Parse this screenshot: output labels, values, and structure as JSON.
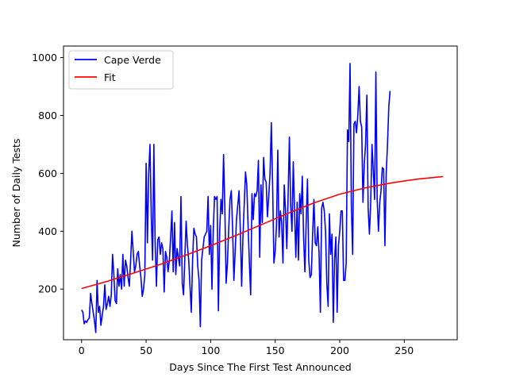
{
  "chart_data": {
    "type": "line",
    "xlabel": "Days Since The First Test Announced",
    "ylabel": "Number of Daily Tests",
    "xlim": [
      -14,
      291
    ],
    "ylim": [
      25,
      1040
    ],
    "x_ticks": [
      0,
      50,
      100,
      150,
      200,
      250
    ],
    "y_ticks": [
      200,
      400,
      600,
      800,
      1000
    ],
    "grid": false,
    "legend": "top-left",
    "series": [
      {
        "name": "Cape Verde",
        "color": "#0000ff",
        "points": [
          [
            0,
            128
          ],
          [
            1,
            120
          ],
          [
            2,
            80
          ],
          [
            3,
            90
          ],
          [
            4,
            85
          ],
          [
            5,
            95
          ],
          [
            6,
            100
          ],
          [
            7,
            185
          ],
          [
            8,
            150
          ],
          [
            9,
            120
          ],
          [
            10,
            90
          ],
          [
            11,
            50
          ],
          [
            12,
            230
          ],
          [
            13,
            120
          ],
          [
            14,
            140
          ],
          [
            15,
            75
          ],
          [
            16,
            110
          ],
          [
            17,
            140
          ],
          [
            18,
            215
          ],
          [
            19,
            130
          ],
          [
            20,
            150
          ],
          [
            21,
            175
          ],
          [
            22,
            140
          ],
          [
            23,
            180
          ],
          [
            24,
            320
          ],
          [
            25,
            250
          ],
          [
            26,
            160
          ],
          [
            27,
            150
          ],
          [
            28,
            270
          ],
          [
            29,
            210
          ],
          [
            30,
            250
          ],
          [
            31,
            200
          ],
          [
            32,
            320
          ],
          [
            33,
            210
          ],
          [
            34,
            300
          ],
          [
            35,
            280
          ],
          [
            36,
            240
          ],
          [
            37,
            210
          ],
          [
            38,
            300
          ],
          [
            39,
            400
          ],
          [
            40,
            330
          ],
          [
            41,
            260
          ],
          [
            42,
            280
          ],
          [
            43,
            320
          ],
          [
            44,
            330
          ],
          [
            45,
            280
          ],
          [
            46,
            240
          ],
          [
            47,
            175
          ],
          [
            48,
            200
          ],
          [
            49,
            250
          ],
          [
            50,
            635
          ],
          [
            51,
            360
          ],
          [
            52,
            600
          ],
          [
            53,
            700
          ],
          [
            54,
            450
          ],
          [
            55,
            300
          ],
          [
            56,
            700
          ],
          [
            57,
            360
          ],
          [
            58,
            210
          ],
          [
            59,
            370
          ],
          [
            60,
            380
          ],
          [
            61,
            320
          ],
          [
            62,
            360
          ],
          [
            63,
            340
          ],
          [
            64,
            190
          ],
          [
            65,
            330
          ],
          [
            66,
            310
          ],
          [
            67,
            260
          ],
          [
            68,
            300
          ],
          [
            69,
            380
          ],
          [
            70,
            470
          ],
          [
            71,
            260
          ],
          [
            72,
            430
          ],
          [
            73,
            250
          ],
          [
            74,
            340
          ],
          [
            75,
            310
          ],
          [
            76,
            280
          ],
          [
            77,
            520
          ],
          [
            78,
            220
          ],
          [
            79,
            180
          ],
          [
            80,
            310
          ],
          [
            81,
            435
          ],
          [
            82,
            350
          ],
          [
            83,
            300
          ],
          [
            84,
            210
          ],
          [
            85,
            120
          ],
          [
            86,
            300
          ],
          [
            87,
            410
          ],
          [
            88,
            390
          ],
          [
            89,
            380
          ],
          [
            90,
            280
          ],
          [
            91,
            230
          ],
          [
            92,
            70
          ],
          [
            93,
            300
          ],
          [
            94,
            340
          ],
          [
            95,
            380
          ],
          [
            96,
            390
          ],
          [
            97,
            400
          ],
          [
            98,
            520
          ],
          [
            99,
            320
          ],
          [
            100,
            420
          ],
          [
            101,
            200
          ],
          [
            102,
            400
          ],
          [
            103,
            520
          ],
          [
            104,
            510
          ],
          [
            105,
            520
          ],
          [
            106,
            125
          ],
          [
            107,
            400
          ],
          [
            108,
            510
          ],
          [
            109,
            460
          ],
          [
            110,
            665
          ],
          [
            111,
            480
          ],
          [
            112,
            220
          ],
          [
            113,
            290
          ],
          [
            114,
            410
          ],
          [
            115,
            510
          ],
          [
            116,
            540
          ],
          [
            117,
            410
          ],
          [
            118,
            230
          ],
          [
            119,
            330
          ],
          [
            120,
            440
          ],
          [
            121,
            490
          ],
          [
            122,
            540
          ],
          [
            123,
            400
          ],
          [
            124,
            210
          ],
          [
            125,
            380
          ],
          [
            126,
            490
          ],
          [
            127,
            605
          ],
          [
            128,
            560
          ],
          [
            129,
            420
          ],
          [
            130,
            290
          ],
          [
            131,
            180
          ],
          [
            132,
            530
          ],
          [
            133,
            440
          ],
          [
            134,
            530
          ],
          [
            135,
            520
          ],
          [
            136,
            540
          ],
          [
            137,
            645
          ],
          [
            138,
            310
          ],
          [
            139,
            560
          ],
          [
            140,
            430
          ],
          [
            141,
            655
          ],
          [
            142,
            580
          ],
          [
            143,
            570
          ],
          [
            144,
            450
          ],
          [
            145,
            520
          ],
          [
            146,
            600
          ],
          [
            147,
            775
          ],
          [
            148,
            560
          ],
          [
            149,
            290
          ],
          [
            150,
            330
          ],
          [
            151,
            420
          ],
          [
            152,
            680
          ],
          [
            153,
            380
          ],
          [
            154,
            470
          ],
          [
            155,
            430
          ],
          [
            156,
            290
          ],
          [
            157,
            560
          ],
          [
            158,
            470
          ],
          [
            159,
            340
          ],
          [
            160,
            520
          ],
          [
            161,
            725
          ],
          [
            162,
            490
          ],
          [
            163,
            400
          ],
          [
            164,
            640
          ],
          [
            165,
            470
          ],
          [
            166,
            310
          ],
          [
            167,
            500
          ],
          [
            168,
            300
          ],
          [
            169,
            530
          ],
          [
            170,
            460
          ],
          [
            171,
            590
          ],
          [
            172,
            380
          ],
          [
            173,
            260
          ],
          [
            174,
            430
          ],
          [
            175,
            580
          ],
          [
            176,
            300
          ],
          [
            177,
            240
          ],
          [
            178,
            250
          ],
          [
            179,
            390
          ],
          [
            180,
            510
          ],
          [
            181,
            360
          ],
          [
            182,
            350
          ],
          [
            183,
            415
          ],
          [
            184,
            320
          ],
          [
            185,
            120
          ],
          [
            186,
            480
          ],
          [
            187,
            500
          ],
          [
            188,
            470
          ],
          [
            189,
            400
          ],
          [
            190,
            220
          ],
          [
            191,
            140
          ],
          [
            192,
            460
          ],
          [
            193,
            320
          ],
          [
            194,
            390
          ],
          [
            195,
            85
          ],
          [
            196,
            300
          ],
          [
            197,
            380
          ],
          [
            198,
            120
          ],
          [
            199,
            350
          ],
          [
            200,
            400
          ],
          [
            201,
            470
          ],
          [
            202,
            470
          ],
          [
            203,
            230
          ],
          [
            204,
            230
          ],
          [
            205,
            290
          ],
          [
            206,
            750
          ],
          [
            207,
            710
          ],
          [
            208,
            980
          ],
          [
            209,
            490
          ],
          [
            210,
            320
          ],
          [
            211,
            770
          ],
          [
            212,
            780
          ],
          [
            213,
            740
          ],
          [
            214,
            800
          ],
          [
            215,
            900
          ],
          [
            216,
            780
          ],
          [
            217,
            760
          ],
          [
            218,
            500
          ],
          [
            219,
            630
          ],
          [
            220,
            700
          ],
          [
            221,
            870
          ],
          [
            222,
            480
          ],
          [
            223,
            390
          ],
          [
            224,
            500
          ],
          [
            225,
            700
          ],
          [
            226,
            610
          ],
          [
            227,
            510
          ],
          [
            228,
            950
          ],
          [
            229,
            510
          ],
          [
            230,
            400
          ],
          [
            231,
            500
          ],
          [
            232,
            540
          ],
          [
            233,
            620
          ],
          [
            234,
            615
          ],
          [
            235,
            350
          ],
          [
            236,
            600
          ],
          [
            237,
            700
          ],
          [
            238,
            830
          ],
          [
            239,
            885
          ]
        ]
      },
      {
        "name": "Fit",
        "color": "#ff0000",
        "points": [
          [
            0,
            202
          ],
          [
            20,
            227
          ],
          [
            40,
            255
          ],
          [
            60,
            284
          ],
          [
            80,
            316
          ],
          [
            100,
            350
          ],
          [
            120,
            386
          ],
          [
            140,
            424
          ],
          [
            160,
            462
          ],
          [
            180,
            498
          ],
          [
            200,
            528
          ],
          [
            220,
            550
          ],
          [
            240,
            567
          ],
          [
            260,
            580
          ],
          [
            280,
            589
          ]
        ]
      }
    ]
  }
}
